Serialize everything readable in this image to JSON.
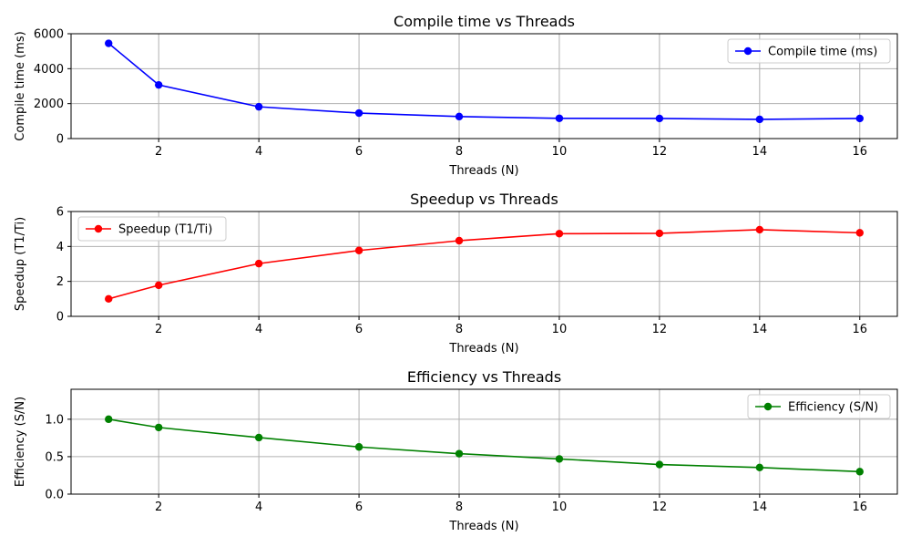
{
  "chart_data": [
    {
      "type": "line",
      "title": "Compile time vs Threads",
      "xlabel": "Threads (N)",
      "ylabel": "Compile time (ms)",
      "xlim": [
        0.25,
        16.75
      ],
      "ylim": [
        0,
        6000
      ],
      "xticks": [
        2,
        4,
        6,
        8,
        10,
        12,
        14,
        16
      ],
      "yticks": [
        0,
        2000,
        4000,
        6000
      ],
      "grid": true,
      "legend_position": "upper right",
      "series": [
        {
          "name": "Compile time (ms)",
          "color": "#0000ff",
          "marker": "circle",
          "x": [
            1,
            2,
            4,
            6,
            8,
            10,
            12,
            14,
            16
          ],
          "values": [
            5450,
            3070,
            1820,
            1460,
            1260,
            1160,
            1150,
            1100,
            1150
          ]
        }
      ]
    },
    {
      "type": "line",
      "title": "Speedup vs Threads",
      "xlabel": "Threads (N)",
      "ylabel": "Speedup (T1/Ti)",
      "xlim": [
        0.25,
        16.75
      ],
      "ylim": [
        0,
        6
      ],
      "xticks": [
        2,
        4,
        6,
        8,
        10,
        12,
        14,
        16
      ],
      "yticks": [
        0,
        2,
        4,
        6
      ],
      "grid": true,
      "legend_position": "upper left",
      "series": [
        {
          "name": "Speedup (T1/Ti)",
          "color": "#ff0000",
          "marker": "circle",
          "x": [
            1,
            2,
            4,
            6,
            8,
            10,
            12,
            14,
            16
          ],
          "values": [
            1.0,
            1.78,
            3.02,
            3.77,
            4.33,
            4.73,
            4.75,
            4.96,
            4.78
          ]
        }
      ]
    },
    {
      "type": "line",
      "title": "Efficiency vs Threads",
      "xlabel": "Threads (N)",
      "ylabel": "Efficiency (S/N)",
      "xlim": [
        0.25,
        16.75
      ],
      "ylim": [
        0,
        1.4
      ],
      "xticks": [
        2,
        4,
        6,
        8,
        10,
        12,
        14,
        16
      ],
      "yticks": [
        0.0,
        0.5,
        1.0
      ],
      "ytick_labels": [
        "0.0",
        "0.5",
        "1.0"
      ],
      "grid": true,
      "legend_position": "upper right",
      "series": [
        {
          "name": "Efficiency (S/N)",
          "color": "#008000",
          "marker": "circle",
          "x": [
            1,
            2,
            4,
            6,
            8,
            10,
            12,
            14,
            16
          ],
          "values": [
            1.0,
            0.89,
            0.755,
            0.63,
            0.54,
            0.47,
            0.395,
            0.355,
            0.3
          ]
        }
      ]
    }
  ]
}
